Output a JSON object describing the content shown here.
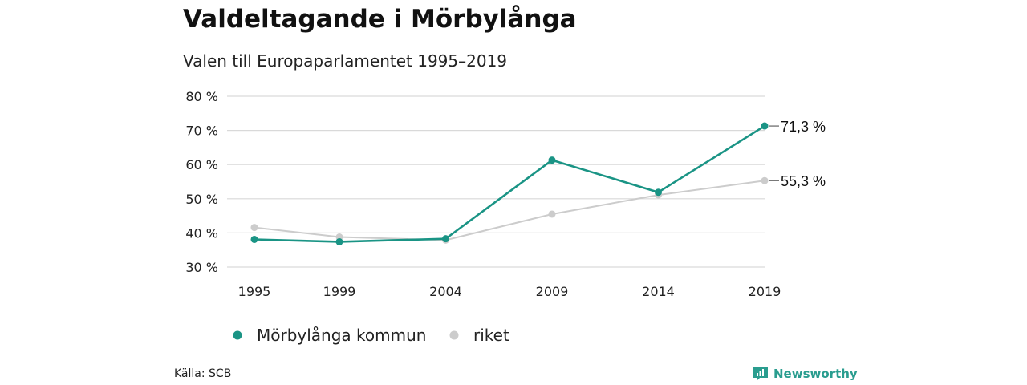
{
  "header": {
    "title": "Valdeltagande i Mörbylånga",
    "subtitle": "Valen till Europaparlamentet 1995–2019"
  },
  "footer": {
    "source": "Källa: SCB",
    "brand": "Newsworthy"
  },
  "colors": {
    "primary": "#1a9485",
    "secondary": "#cccccc",
    "grid": "#d9d9d9",
    "brand": "#2a9d8f"
  },
  "chart_data": {
    "type": "line",
    "title": "Valdeltagande i Mörbylånga",
    "subtitle": "Valen till Europaparlamentet 1995–2019",
    "x": [
      "1995",
      "1999",
      "2004",
      "2009",
      "2014",
      "2019"
    ],
    "yticks": [
      "30 %",
      "40 %",
      "50 %",
      "60 %",
      "70 %",
      "80 %"
    ],
    "ylim": [
      30,
      80
    ],
    "grid": true,
    "legend_position": "bottom",
    "series": [
      {
        "name": "Mörbylånga kommun",
        "color": "#1a9485",
        "values": [
          38.1,
          37.4,
          38.3,
          61.3,
          51.9,
          71.3
        ],
        "end_label": "71,3 %"
      },
      {
        "name": "riket",
        "color": "#cccccc",
        "values": [
          41.6,
          38.8,
          37.9,
          45.5,
          51.1,
          55.3
        ],
        "end_label": "55,3 %"
      }
    ]
  }
}
